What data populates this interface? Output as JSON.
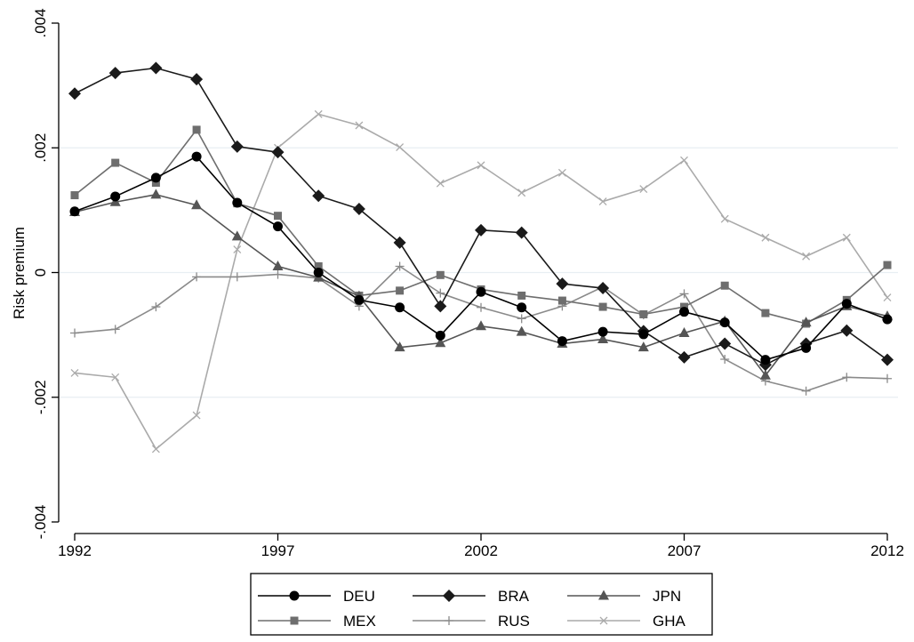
{
  "chart_data": {
    "type": "line",
    "title": "",
    "xlabel": "",
    "ylabel": "Risk premium",
    "x": [
      1992,
      1993,
      1994,
      1995,
      1996,
      1997,
      1998,
      1999,
      2000,
      2001,
      2002,
      2003,
      2004,
      2005,
      2006,
      2007,
      2008,
      2009,
      2010,
      2011,
      2012
    ],
    "xticks": [
      1992,
      1997,
      2002,
      2007,
      2012
    ],
    "xtick_labels": [
      "1992",
      "1997",
      "2002",
      "2007",
      "2012"
    ],
    "xlim": [
      1992,
      2012
    ],
    "yticks": [
      -0.004,
      -0.002,
      0,
      0.002,
      0.004
    ],
    "ytick_labels": [
      "-.004",
      "-.002",
      "0",
      ".002",
      ".004"
    ],
    "ylim": [
      -0.004,
      0.004
    ],
    "grid": "horizontal",
    "legend_position": "bottom",
    "series": [
      {
        "name": "DEU",
        "color": "#000000",
        "marker": "circle",
        "values": [
          0.00098,
          0.00122,
          0.00152,
          0.00186,
          0.00112,
          0.00074,
          0.0,
          -0.00044,
          -0.00056,
          -0.00101,
          -0.00031,
          -0.00056,
          -0.0011,
          -0.00095,
          -0.00099,
          -0.00063,
          -0.0008,
          -0.0014,
          -0.00121,
          -0.0005,
          -0.00075
        ]
      },
      {
        "name": "BRA",
        "color": "#1a1a1a",
        "marker": "diamond",
        "values": [
          0.00287,
          0.0032,
          0.00328,
          0.0031,
          0.00202,
          0.00193,
          0.00123,
          0.00102,
          0.00048,
          -0.00054,
          0.00068,
          0.00064,
          -0.00018,
          -0.00025,
          -0.00094,
          -0.00136,
          -0.00114,
          -0.00148,
          -0.00114,
          -0.00093,
          -0.0014
        ]
      },
      {
        "name": "JPN",
        "color": "#555555",
        "marker": "triangle",
        "values": [
          0.00097,
          0.00113,
          0.00125,
          0.00108,
          0.00058,
          0.0001,
          -8e-05,
          -0.00038,
          -0.0012,
          -0.00113,
          -0.00086,
          -0.00095,
          -0.00114,
          -0.00107,
          -0.0012,
          -0.00097,
          -0.00078,
          -0.00165,
          -0.0008,
          -0.00054,
          -0.0007
        ]
      },
      {
        "name": "MEX",
        "color": "#6e6e6e",
        "marker": "square",
        "values": [
          0.00124,
          0.00176,
          0.00144,
          0.00229,
          0.00111,
          0.00091,
          0.0001,
          -0.00037,
          -0.00029,
          -4e-05,
          -0.00027,
          -0.00037,
          -0.00045,
          -0.00055,
          -0.00067,
          -0.00055,
          -0.00021,
          -0.00065,
          -0.00082,
          -0.00044,
          0.00012
        ]
      },
      {
        "name": "RUS",
        "color": "#8a8a8a",
        "marker": "plus",
        "values": [
          -0.00097,
          -0.00091,
          -0.00055,
          -7e-05,
          -7e-05,
          -3e-05,
          -9e-05,
          -0.00054,
          0.0001,
          -0.00033,
          -0.00056,
          -0.00074,
          -0.00054,
          -0.00023,
          -0.00068,
          -0.00034,
          -0.00139,
          -0.00174,
          -0.0019,
          -0.00168,
          -0.0017
        ]
      },
      {
        "name": "GHA",
        "color": "#aaaaaa",
        "marker": "x",
        "values": [
          -0.00161,
          -0.00168,
          -0.00283,
          -0.00229,
          0.00037,
          0.002,
          0.00254,
          0.00236,
          0.00201,
          0.00143,
          0.00172,
          0.00128,
          0.0016,
          0.00114,
          0.00134,
          0.0018,
          0.00086,
          0.00056,
          0.00026,
          0.00056,
          -0.0004
        ]
      }
    ]
  }
}
